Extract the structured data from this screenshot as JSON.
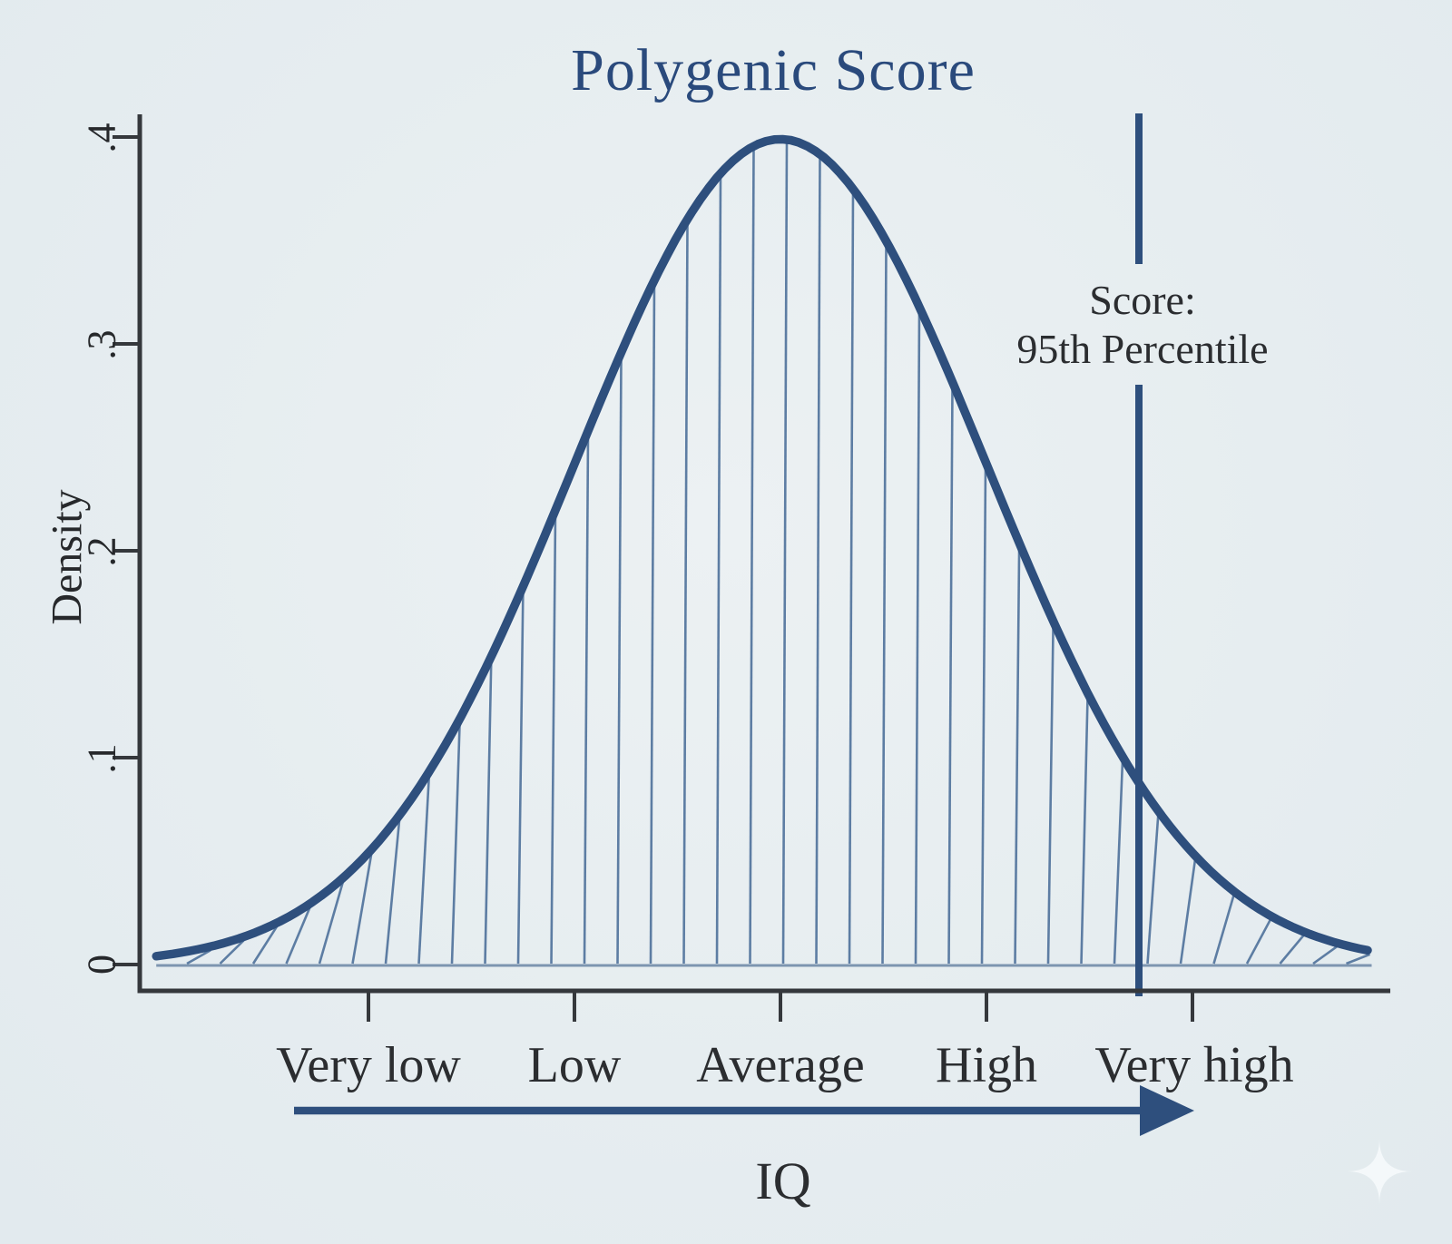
{
  "chart_data": {
    "type": "area",
    "title": "Polygenic Score",
    "ylabel": "Density",
    "xlabel": "IQ",
    "x_categories": [
      "Very low",
      "Low",
      "Average",
      "High",
      "Very high"
    ],
    "x_category_z": [
      -2,
      -1,
      0,
      1,
      2
    ],
    "ytick_labels": [
      "0",
      ".1",
      ".2",
      ".3",
      ".4"
    ],
    "ytick_values": [
      0,
      0.1,
      0.2,
      0.3,
      0.4
    ],
    "ylim": [
      0,
      0.42
    ],
    "xlim_z": [
      -3.03,
      2.87
    ],
    "grid": false,
    "legend": "none",
    "distribution": {
      "kind": "standard-normal",
      "mean_z": 0,
      "sd_z": 1,
      "peak_density": 0.3989
    },
    "hatch_fill": true,
    "marker_line": {
      "percentile": 95,
      "label": [
        "Score:",
        "95th Percentile"
      ]
    },
    "arrow": {
      "label": "IQ",
      "direction": "right"
    },
    "colors": {
      "title": "#2a4a7c",
      "curve": "#2e4f7d",
      "hatch": "#5d7da3",
      "baseline": "#7d95b0",
      "axis": "#35383c",
      "text": "#2b2d30",
      "sparkle": "#f5fafb",
      "background": "#e6edf0"
    }
  }
}
